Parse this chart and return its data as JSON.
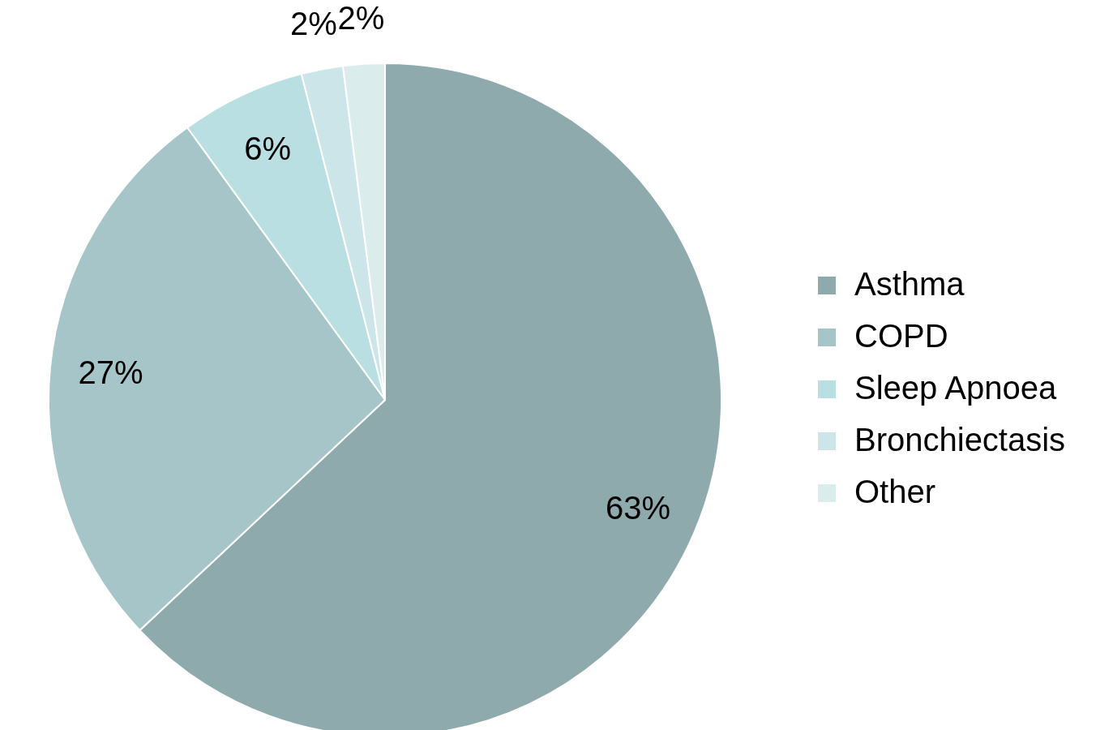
{
  "chart_data": {
    "type": "pie",
    "categories": [
      "Asthma",
      "COPD",
      "Sleep Apnoea",
      "Bronchiectasis",
      "Other"
    ],
    "values": [
      63,
      27,
      6,
      2,
      2
    ],
    "colors": [
      "#8eaaad",
      "#a6c5c8",
      "#badfe3",
      "#cce5e8",
      "#dbeced"
    ],
    "value_labels": [
      "63%",
      "27%",
      "6%",
      "2%",
      "2%"
    ],
    "legend": "right"
  }
}
